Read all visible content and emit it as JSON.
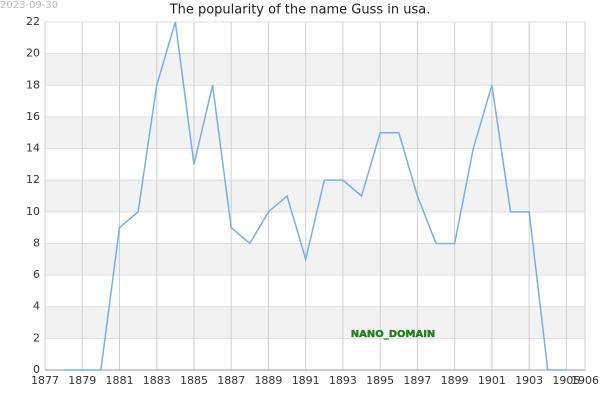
{
  "stamp": "2023-09-30",
  "watermark": "NANO_DOMAIN",
  "chart_data": {
    "type": "line",
    "title": "The popularity of the name Guss in usa.",
    "x": [
      1878,
      1879,
      1880,
      1881,
      1882,
      1883,
      1884,
      1885,
      1886,
      1887,
      1888,
      1889,
      1890,
      1891,
      1892,
      1893,
      1894,
      1895,
      1896,
      1897,
      1898,
      1899,
      1900,
      1901,
      1902,
      1903,
      1904,
      1905
    ],
    "series": [
      {
        "name": "Guss",
        "color": "#7aaee8",
        "values": [
          0,
          0,
          0,
          9,
          10,
          18,
          22,
          13,
          18,
          9,
          8,
          10,
          11,
          7,
          12,
          12,
          11,
          15,
          15,
          11,
          8,
          8,
          14,
          18,
          10,
          10,
          0,
          0
        ]
      }
    ],
    "xlim": [
      1877,
      1906
    ],
    "xticks": [
      1877,
      1879,
      1881,
      1883,
      1885,
      1887,
      1889,
      1891,
      1893,
      1895,
      1897,
      1899,
      1901,
      1903,
      1905,
      1906
    ],
    "ylim": [
      0,
      22
    ],
    "yticks": [
      0,
      2,
      4,
      6,
      8,
      10,
      12,
      14,
      16,
      18,
      20,
      22
    ],
    "grid": true
  }
}
